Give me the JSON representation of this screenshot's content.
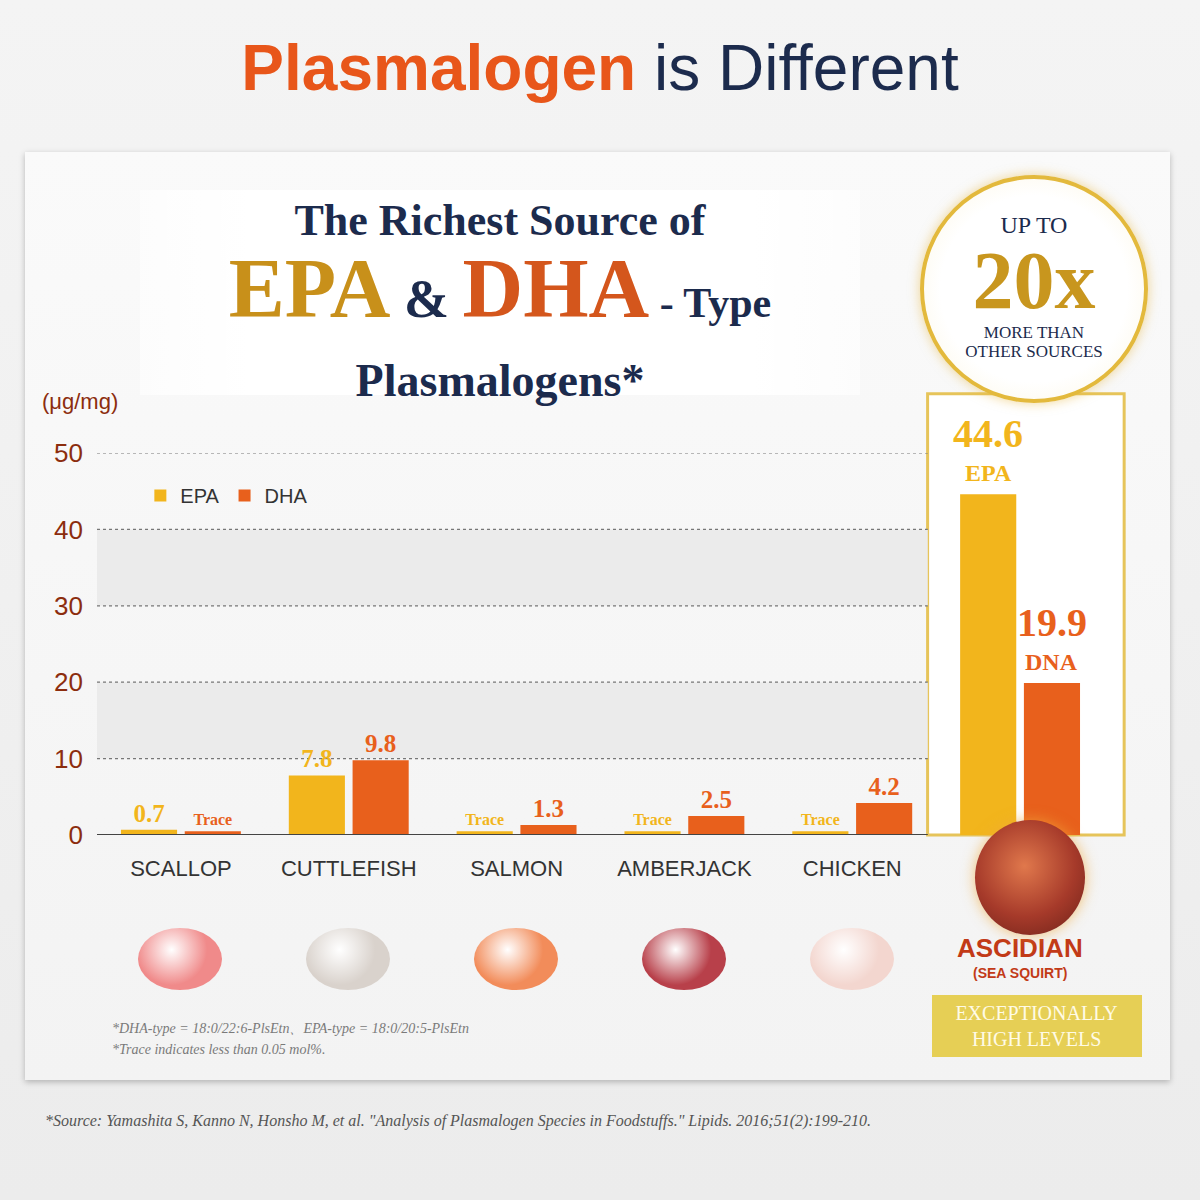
{
  "headline": [
    "Plasmalogen",
    "is Different"
  ],
  "badge": [
    "UP TO",
    "20x",
    "MORE THAN",
    "OTHER SOURCES"
  ],
  "chart_data": {
    "type": "bar",
    "title": [
      "The Richest Source of",
      "EPA",
      "&",
      "DHA",
      "- Type",
      "Plasmalogens*"
    ],
    "y_label": "(μg/mg)",
    "categories": [
      "SCALLOP",
      "CUTTLEFISH",
      "SALMON",
      "AMBERJACK",
      "CHICKEN",
      "ASCIDIAN"
    ],
    "series": [
      {
        "name": "EPA",
        "color": "#f2b51c",
        "values": [
          0.7,
          7.8,
          0.5,
          0.5,
          0.5,
          44.6
        ],
        "value_labels": [
          "0.7",
          "7.8",
          "Trace",
          "Trace",
          "Trace",
          "44.6"
        ]
      },
      {
        "name": "DHA",
        "color": "#e8601c",
        "values": [
          0.5,
          9.8,
          1.3,
          2.5,
          4.2,
          19.9
        ],
        "value_labels": [
          "Trace",
          "9.8",
          "1.3",
          "2.5",
          "4.2",
          "19.9"
        ]
      }
    ],
    "ylim": [
      0,
      50
    ],
    "yticks": [
      0,
      10,
      20,
      30,
      40,
      50
    ],
    "grid": true,
    "legend": "upper left",
    "data_labels": true,
    "annotations": {
      "ASCIDIAN": {
        "subtitle": "(SEA SQUIRT)",
        "series_labels": [
          "EPA",
          "DNA"
        ],
        "badge": "EXCEPTIONALLY HIGH LEVELS"
      }
    }
  },
  "footnotes": [
    "*DHA-type = 18:0/22:6-PlsEtn、EPA-type = 18:0/20:5-PlsEtn",
    "*Trace indicates less than 0.05 mol%."
  ],
  "source": "*Source: Yamashita S, Kanno N, Honsho M, et al. \"Analysis of Plasmalogen Species in Foodstuffs.\" Lipids. 2016;51(2):199-210."
}
